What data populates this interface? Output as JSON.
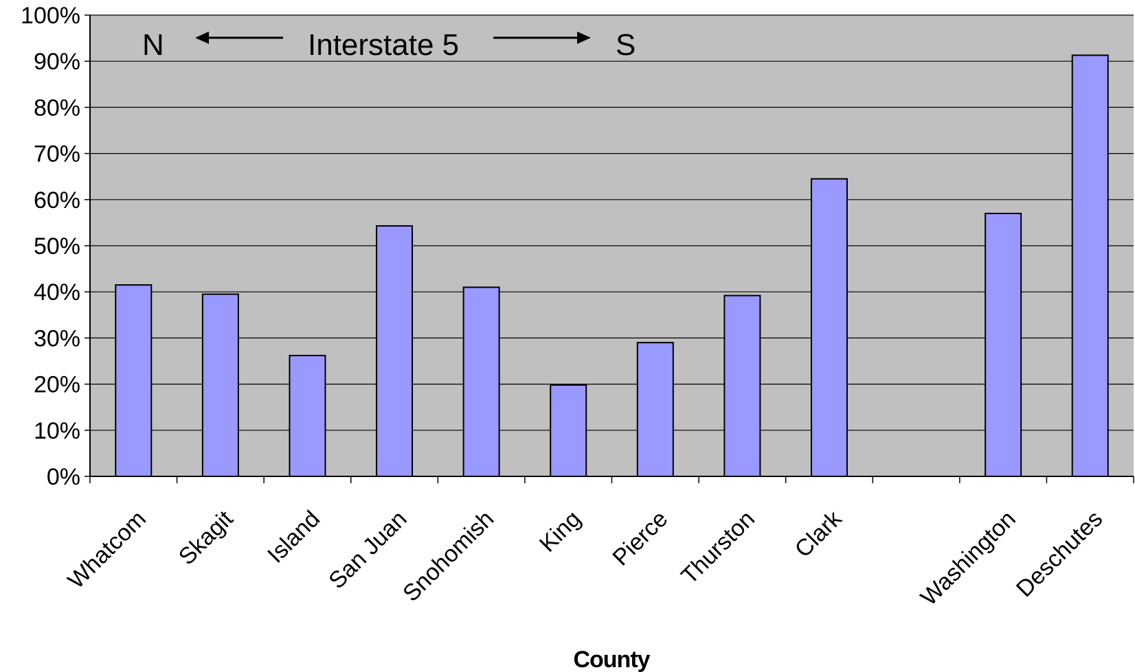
{
  "chart_data": {
    "type": "bar",
    "title": "",
    "xlabel": "County",
    "ylabel": "",
    "ylim": [
      0,
      100
    ],
    "yticks": [
      "0%",
      "10%",
      "20%",
      "30%",
      "40%",
      "50%",
      "60%",
      "70%",
      "80%",
      "90%",
      "100%"
    ],
    "grid": true,
    "legend": "none",
    "categories": [
      "Whatcom",
      "Skagit",
      "Island",
      "San Juan",
      "Snohomish",
      "King",
      "Pierce",
      "Thurston",
      "Clark",
      "",
      "Washington",
      "Deschutes"
    ],
    "values": [
      41.5,
      39.5,
      26.2,
      54.3,
      41,
      19.8,
      29,
      39.2,
      64.5,
      null,
      57,
      91.3
    ],
    "annotation": {
      "north": "N",
      "label": "Interstate 5",
      "south": "S"
    },
    "colors": {
      "bar": "#9999ff",
      "plot_bg": "#c0c0c0"
    }
  }
}
